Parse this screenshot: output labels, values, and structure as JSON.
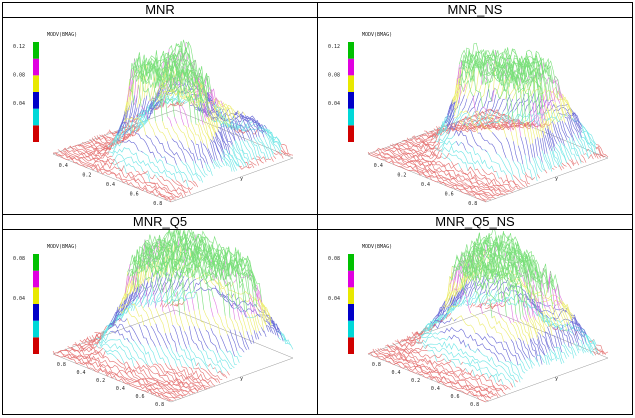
{
  "table": {
    "rows": [
      {
        "headers": [
          "MNR",
          "MNR_NS"
        ]
      },
      {
        "headers": [
          "MNR_Q5",
          "MNR_Q5_NS"
        ]
      }
    ]
  },
  "panels": [
    {
      "plot_label": "MODV(BMAG)",
      "legend_labels": [
        "0.12",
        "0.08",
        "0.04"
      ],
      "axis_label": "y",
      "axis_ticks": [
        "0.4",
        "0.2",
        "0.4",
        "0.6",
        "0.8"
      ]
    },
    {
      "plot_label": "MODV(BMAG)",
      "legend_labels": [
        "0.12",
        "0.08",
        "0.04"
      ],
      "axis_label": "y",
      "axis_ticks": [
        "0.4",
        "0.2",
        "0.4",
        "0.6",
        "0.8"
      ]
    },
    {
      "plot_label": "MODV(BMAG)",
      "legend_labels": [
        "0.08",
        "0.04"
      ],
      "axis_label": "y",
      "axis_ticks": [
        "0.8",
        "0.4",
        "0.2",
        "0.4",
        "0.6",
        "0.8"
      ]
    },
    {
      "plot_label": "MODV(BMAG)",
      "legend_labels": [
        "0.08",
        "0.04"
      ],
      "axis_label": "y",
      "axis_ticks": [
        "0.8",
        "0.4",
        "0.2",
        "0.4",
        "0.6",
        "0.8"
      ]
    }
  ]
}
